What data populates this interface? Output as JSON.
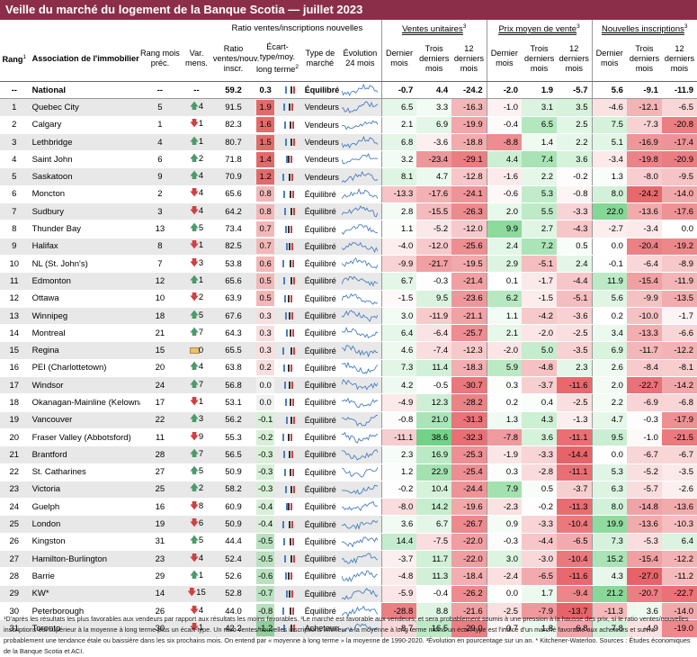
{
  "title": "Veille du marché du logement de la Banque Scotia — juillet 2023",
  "headers": {
    "group_ratio": "Ratio ventes/inscriptions nouvelles",
    "group_sales": "Ventes unitaires",
    "group_price": "Prix moyen de vente",
    "group_listings": "Nouvelles inscriptions",
    "rang": "Rang",
    "assoc": "Association de l'immobilier",
    "rang_prec": "Rang mois préc.",
    "var": "Var. mens.",
    "ratio": "Ratio ventes/nouv. inscr.",
    "ecart": "Écart-type/moy. long terme",
    "type": "Type de marché",
    "evol": "Évolution 24 mois",
    "last": "Dernier mois",
    "three": "Trois derniers mois",
    "twelve": "12 derniers mois",
    "sup1": "1",
    "sup2": "2",
    "sup3": "3"
  },
  "colors": {
    "title_bg": "#8a2e4a",
    "up": "#4a9c6a",
    "down": "#d04040",
    "flat": "#d1a73a",
    "spark": "#4a7fc1"
  },
  "national": {
    "rank": "--",
    "name": "National",
    "prev": "--",
    "var": "--",
    "ratio": "59.2",
    "sd": "0.3",
    "type": "Équilibré",
    "sales": [
      "-0.7",
      "4.4",
      "-24.2"
    ],
    "price": [
      "-2.0",
      "1.9",
      "-5.7"
    ],
    "listings": [
      "5.6",
      "-9.1",
      "-11.9"
    ]
  },
  "rows": [
    {
      "rank": "1",
      "name": "Quebec City",
      "prev": "5",
      "dir": "up",
      "var": "4",
      "ratio": "91.5",
      "sd": "1.9",
      "type": "Vendeurs",
      "sales": [
        "6.5",
        "3.3",
        "-16.3"
      ],
      "price": [
        "-1.0",
        "3.1",
        "3.5"
      ],
      "listings": [
        "-4.6",
        "-12.1",
        "-6.5"
      ]
    },
    {
      "rank": "2",
      "name": "Calgary",
      "prev": "1",
      "dir": "down",
      "var": "1",
      "ratio": "82.3",
      "sd": "1.6",
      "type": "Vendeurs",
      "sales": [
        "2.1",
        "6.9",
        "-19.9"
      ],
      "price": [
        "-0.4",
        "6.5",
        "2.5"
      ],
      "listings": [
        "7.5",
        "-7.3",
        "-20.8"
      ]
    },
    {
      "rank": "3",
      "name": "Lethbridge",
      "prev": "4",
      "dir": "up",
      "var": "1",
      "ratio": "80.7",
      "sd": "1.5",
      "type": "Vendeurs",
      "sales": [
        "6.8",
        "-3.6",
        "-18.8"
      ],
      "price": [
        "-8.8",
        "1.4",
        "2.2"
      ],
      "listings": [
        "5.1",
        "-16.9",
        "-17.4"
      ]
    },
    {
      "rank": "4",
      "name": "Saint John",
      "prev": "6",
      "dir": "up",
      "var": "2",
      "ratio": "71.8",
      "sd": "1.4",
      "type": "Vendeurs",
      "sales": [
        "3.2",
        "-23.4",
        "-29.1"
      ],
      "price": [
        "4.4",
        "7.4",
        "3.6"
      ],
      "listings": [
        "-3.4",
        "-19.8",
        "-20.9"
      ]
    },
    {
      "rank": "5",
      "name": "Saskatoon",
      "prev": "9",
      "dir": "up",
      "var": "4",
      "ratio": "70.9",
      "sd": "1.2",
      "type": "Vendeurs",
      "sales": [
        "8.1",
        "4.7",
        "-12.8"
      ],
      "price": [
        "-1.6",
        "2.2",
        "-0.2"
      ],
      "listings": [
        "1.3",
        "-8.0",
        "-9.5"
      ]
    },
    {
      "rank": "6",
      "name": "Moncton",
      "prev": "2",
      "dir": "down",
      "var": "4",
      "ratio": "65.6",
      "sd": "0.8",
      "type": "Équilibré",
      "sales": [
        "-13.3",
        "-17.6",
        "-24.1"
      ],
      "price": [
        "-0.6",
        "5.3",
        "-0.8"
      ],
      "listings": [
        "8.0",
        "-24.2",
        "-14.0"
      ]
    },
    {
      "rank": "7",
      "name": "Sudbury",
      "prev": "3",
      "dir": "down",
      "var": "4",
      "ratio": "64.2",
      "sd": "0.8",
      "type": "Équilibré",
      "sales": [
        "2.8",
        "-15.5",
        "-26.3"
      ],
      "price": [
        "2.0",
        "5.5",
        "-3.3"
      ],
      "listings": [
        "22.0",
        "-13.6",
        "-17.6"
      ]
    },
    {
      "rank": "8",
      "name": "Thunder Bay",
      "prev": "13",
      "dir": "up",
      "var": "5",
      "ratio": "73.4",
      "sd": "0.7",
      "type": "Équilibré",
      "sales": [
        "1.1",
        "-5.2",
        "-12.0"
      ],
      "price": [
        "9.9",
        "2.7",
        "-4.3"
      ],
      "listings": [
        "-2.7",
        "-3.4",
        "0.0"
      ]
    },
    {
      "rank": "9",
      "name": "Halifax",
      "prev": "8",
      "dir": "down",
      "var": "1",
      "ratio": "82.5",
      "sd": "0.7",
      "type": "Équilibré",
      "sales": [
        "-4.0",
        "-12.0",
        "-25.6"
      ],
      "price": [
        "2.4",
        "7.2",
        "0.5"
      ],
      "listings": [
        "0.0",
        "-20.4",
        "-19.2"
      ]
    },
    {
      "rank": "10",
      "name": "NL (St. John's)",
      "prev": "7",
      "dir": "down",
      "var": "3",
      "ratio": "53.8",
      "sd": "0.6",
      "type": "Équilibré",
      "sales": [
        "-9.9",
        "-21.7",
        "-19.5"
      ],
      "price": [
        "2.9",
        "-5.1",
        "2.4"
      ],
      "listings": [
        "-0.1",
        "-6.4",
        "-8.9"
      ]
    },
    {
      "rank": "11",
      "name": "Edmonton",
      "prev": "12",
      "dir": "up",
      "var": "1",
      "ratio": "65.6",
      "sd": "0.5",
      "type": "Équilibré",
      "sales": [
        "6.7",
        "-0.3",
        "-21.4"
      ],
      "price": [
        "0.1",
        "-1.7",
        "-4.4"
      ],
      "listings": [
        "11.9",
        "-15.4",
        "-11.9"
      ]
    },
    {
      "rank": "12",
      "name": "Ottawa",
      "prev": "10",
      "dir": "down",
      "var": "2",
      "ratio": "63.9",
      "sd": "0.5",
      "type": "Équilibré",
      "sales": [
        "-1.5",
        "9.5",
        "-23.6"
      ],
      "price": [
        "6.2",
        "-1.5",
        "-5.1"
      ],
      "listings": [
        "5.6",
        "-9.9",
        "-13.5"
      ]
    },
    {
      "rank": "13",
      "name": "Winnipeg",
      "prev": "18",
      "dir": "up",
      "var": "5",
      "ratio": "67.6",
      "sd": "0.3",
      "type": "Équilibré",
      "sales": [
        "3.0",
        "-11.9",
        "-21.1"
      ],
      "price": [
        "1.1",
        "-4.2",
        "-3.6"
      ],
      "listings": [
        "0.2",
        "-10.0",
        "-1.7"
      ]
    },
    {
      "rank": "14",
      "name": "Montreal",
      "prev": "21",
      "dir": "up",
      "var": "7",
      "ratio": "64.3",
      "sd": "0.3",
      "type": "Équilibré",
      "sales": [
        "6.4",
        "-6.4",
        "-25.7"
      ],
      "price": [
        "2.1",
        "-2.0",
        "-2.5"
      ],
      "listings": [
        "3.4",
        "-13.3",
        "-6.6"
      ]
    },
    {
      "rank": "15",
      "name": "Regina",
      "prev": "15",
      "dir": "flat",
      "var": "0",
      "ratio": "65.5",
      "sd": "0.3",
      "type": "Équilibré",
      "sales": [
        "4.6",
        "-7.4",
        "-12.3"
      ],
      "price": [
        "-2.0",
        "5.0",
        "-3.5"
      ],
      "listings": [
        "6.9",
        "-11.7",
        "-12.2"
      ]
    },
    {
      "rank": "16",
      "name": "PEI (Charlottetown)",
      "prev": "20",
      "dir": "up",
      "var": "4",
      "ratio": "63.8",
      "sd": "0.2",
      "type": "Équilibré",
      "sales": [
        "7.3",
        "11.4",
        "-18.3"
      ],
      "price": [
        "5.9",
        "-4.8",
        "2.3"
      ],
      "listings": [
        "2.6",
        "-8.4",
        "-8.1"
      ]
    },
    {
      "rank": "17",
      "name": "Windsor",
      "prev": "24",
      "dir": "up",
      "var": "7",
      "ratio": "56.8",
      "sd": "0.0",
      "type": "Équilibré",
      "sales": [
        "4.2",
        "-0.5",
        "-30.7"
      ],
      "price": [
        "0.3",
        "-3.7",
        "-11.6"
      ],
      "listings": [
        "2.0",
        "-22.7",
        "-14.2"
      ]
    },
    {
      "rank": "18",
      "name": "Okanagan-Mainline (Kelowna)",
      "prev": "17",
      "dir": "down",
      "var": "1",
      "ratio": "53.1",
      "sd": "0.0",
      "type": "Équilibré",
      "sales": [
        "-4.9",
        "12.3",
        "-28.2"
      ],
      "price": [
        "0.2",
        "0.4",
        "-2.5"
      ],
      "listings": [
        "2.2",
        "-6.9",
        "-6.8"
      ]
    },
    {
      "rank": "19",
      "name": "Vancouver",
      "prev": "22",
      "dir": "up",
      "var": "3",
      "ratio": "56.2",
      "sd": "-0.1",
      "type": "Équilibré",
      "sales": [
        "-0.8",
        "21.0",
        "-31.3"
      ],
      "price": [
        "1.3",
        "4.3",
        "-1.3"
      ],
      "listings": [
        "4.7",
        "-0.3",
        "-17.9"
      ]
    },
    {
      "rank": "20",
      "name": "Fraser Valley (Abbotsford)",
      "prev": "11",
      "dir": "down",
      "var": "9",
      "ratio": "55.3",
      "sd": "-0.2",
      "type": "Équilibré",
      "sales": [
        "-11.1",
        "38.6",
        "-32.3"
      ],
      "price": [
        "-7.8",
        "3.6",
        "-11.1"
      ],
      "listings": [
        "9.5",
        "-1.0",
        "-21.5"
      ]
    },
    {
      "rank": "21",
      "name": "Brantford",
      "prev": "28",
      "dir": "up",
      "var": "7",
      "ratio": "56.5",
      "sd": "-0.3",
      "type": "Équilibré",
      "sales": [
        "2.3",
        "16.9",
        "-25.3"
      ],
      "price": [
        "-1.9",
        "-3.3",
        "-14.4"
      ],
      "listings": [
        "0.0",
        "-6.7",
        "-6.7"
      ]
    },
    {
      "rank": "22",
      "name": "St. Catharines",
      "prev": "27",
      "dir": "up",
      "var": "5",
      "ratio": "50.9",
      "sd": "-0.3",
      "type": "Équilibré",
      "sales": [
        "1.2",
        "22.9",
        "-25.4"
      ],
      "price": [
        "0.3",
        "-2.8",
        "-11.1"
      ],
      "listings": [
        "5.3",
        "-5.2",
        "-3.5"
      ]
    },
    {
      "rank": "23",
      "name": "Victoria",
      "prev": "25",
      "dir": "up",
      "var": "2",
      "ratio": "58.2",
      "sd": "-0.3",
      "type": "Équilibré",
      "sales": [
        "-0.2",
        "10.4",
        "-24.4"
      ],
      "price": [
        "7.9",
        "0.5",
        "-3.7"
      ],
      "listings": [
        "6.3",
        "-5.7",
        "-2.6"
      ]
    },
    {
      "rank": "24",
      "name": "Guelph",
      "prev": "16",
      "dir": "down",
      "var": "8",
      "ratio": "60.9",
      "sd": "-0.4",
      "type": "Équilibré",
      "sales": [
        "-8.0",
        "14.2",
        "-19.6"
      ],
      "price": [
        "-2.3",
        "-0.2",
        "-11.3"
      ],
      "listings": [
        "8.0",
        "-14.8",
        "-13.6"
      ]
    },
    {
      "rank": "25",
      "name": "London",
      "prev": "19",
      "dir": "down",
      "var": "6",
      "ratio": "50.9",
      "sd": "-0.4",
      "type": "Équilibré",
      "sales": [
        "3.6",
        "6.7",
        "-26.7"
      ],
      "price": [
        "0.9",
        "-3.3",
        "-10.4"
      ],
      "listings": [
        "19.9",
        "-13.6",
        "-10.3"
      ]
    },
    {
      "rank": "26",
      "name": "Kingston",
      "prev": "31",
      "dir": "up",
      "var": "5",
      "ratio": "44.4",
      "sd": "-0.5",
      "type": "Équilibré",
      "sales": [
        "14.4",
        "-7.5",
        "-22.0"
      ],
      "price": [
        "-0.3",
        "-4.4",
        "-6.5"
      ],
      "listings": [
        "7.3",
        "-5.3",
        "6.4"
      ]
    },
    {
      "rank": "27",
      "name": "Hamilton-Burlington",
      "prev": "23",
      "dir": "down",
      "var": "4",
      "ratio": "52.4",
      "sd": "-0.5",
      "type": "Équilibré",
      "sales": [
        "-3.7",
        "11.7",
        "-22.0"
      ],
      "price": [
        "3.0",
        "-3.0",
        "-10.4"
      ],
      "listings": [
        "15.2",
        "-15.4",
        "-12.2"
      ]
    },
    {
      "rank": "28",
      "name": "Barrie",
      "prev": "29",
      "dir": "up",
      "var": "1",
      "ratio": "52.6",
      "sd": "-0.6",
      "type": "Équilibré",
      "sales": [
        "-4.8",
        "11.3",
        "-18.4"
      ],
      "price": [
        "-2.4",
        "-6.5",
        "-11.6"
      ],
      "listings": [
        "4.3",
        "-27.0",
        "-11.2"
      ]
    },
    {
      "rank": "29",
      "name": "KW*",
      "prev": "14",
      "dir": "down",
      "var": "15",
      "ratio": "52.8",
      "sd": "-0.7",
      "type": "Équilibré",
      "sales": [
        "-5.9",
        "-0.4",
        "-26.2"
      ],
      "price": [
        "0.0",
        "1.7",
        "-9.4"
      ],
      "listings": [
        "21.2",
        "-20.7",
        "-22.7"
      ]
    },
    {
      "rank": "30",
      "name": "Peterborough",
      "prev": "26",
      "dir": "down",
      "var": "4",
      "ratio": "44.0",
      "sd": "-0.8",
      "type": "Équilibré",
      "sales": [
        "-28.8",
        "8.8",
        "-21.6"
      ],
      "price": [
        "-2.5",
        "-7.9",
        "-13.7"
      ],
      "listings": [
        "-11.3",
        "3.6",
        "-14.0"
      ]
    },
    {
      "rank": "31",
      "name": "Toronto",
      "prev": "30",
      "dir": "down",
      "var": "1",
      "ratio": "42.2",
      "sd": "-1.2",
      "type": "Acheteurs",
      "sales": [
        "-8.7",
        "16.5",
        "-29.0"
      ],
      "price": [
        "-0.7",
        "1.8",
        "-6.8"
      ],
      "listings": [
        "7.8",
        "-4.9",
        "-19.0"
      ]
    }
  ],
  "footnote": "¹D'après les résultats les plus favorables aux vendeurs par rapport aux résultats les moins favorables. ²Le marché est favorable aux vendeurs, et sera probablement soumis à une pression à la hausse des prix, si le ratio ventes/nouvelles inscriptions est supérieur à la moyenne à long terme plus un écart-type. Un ratio ventes/nouvelles inscriptions inférieur à la moyenne à long terme moins un écart-type est l'indice d'un marché favorable aux acheteurs et suivra probablement une tendance étale ou baissière dans les six prochains mois. On entend par « moyenne à long terme » la moyenne de 1990-2020. ³Évolution en pourcentage sur un an. * Kitchener-Waterloo. Sources : Études économiques de la Banque Scotia et ACI."
}
